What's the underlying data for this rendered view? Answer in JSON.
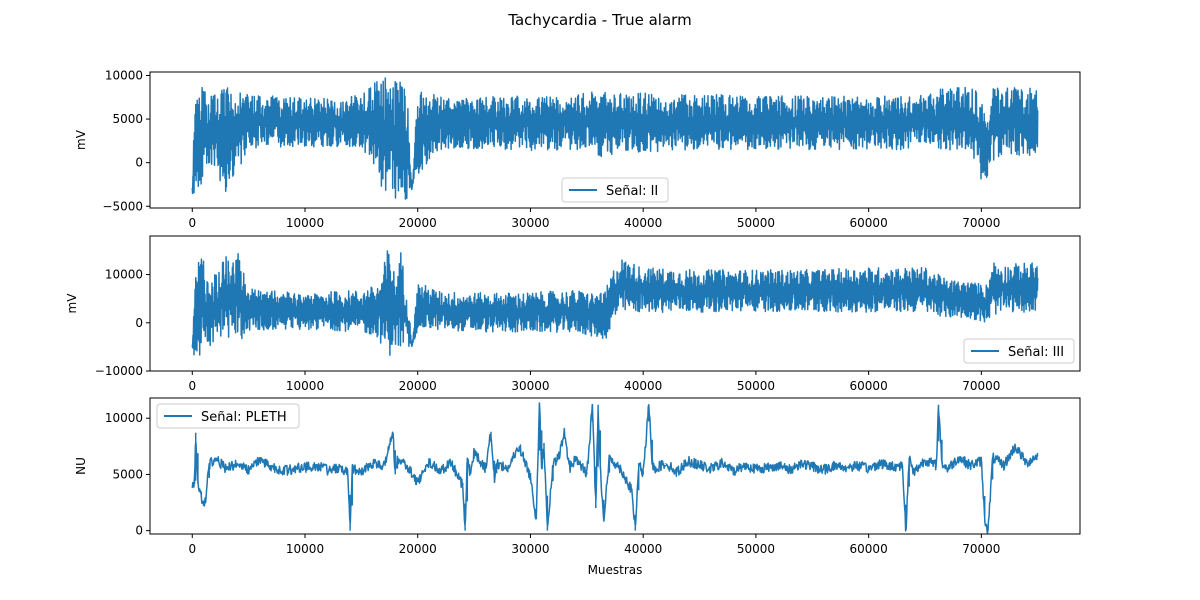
{
  "figure": {
    "title": "Tachycardia - True alarm",
    "xlabel": "Muestras"
  },
  "colors": {
    "series": "#1f77b4",
    "frame": "#000000",
    "legend_border": "#cccccc"
  },
  "chart_data": [
    {
      "type": "line",
      "ylabel": "mV",
      "legend": "Señal: II",
      "legend_loc": "lower-center",
      "xlim": [
        -3750,
        78750
      ],
      "ylim": [
        -5200,
        10400
      ],
      "xticks": [
        0,
        10000,
        20000,
        30000,
        40000,
        50000,
        60000,
        70000
      ],
      "yticks": [
        -5000,
        0,
        5000,
        10000
      ],
      "envelope": {
        "x": [
          0,
          300,
          800,
          1500,
          3000,
          5000,
          8000,
          12000,
          15000,
          16500,
          17000,
          17500,
          18000,
          18500,
          19000,
          19500,
          20000,
          22000,
          26000,
          30000,
          34000,
          36500,
          37000,
          37500,
          40000,
          45000,
          50000,
          55000,
          60000,
          65000,
          67000,
          69000,
          70000,
          70500,
          71000,
          72000,
          74000,
          75000
        ],
        "upper": [
          -2500,
          9800,
          8800,
          7500,
          8700,
          7800,
          7600,
          7500,
          7700,
          9500,
          10300,
          8500,
          9800,
          10200,
          9500,
          -2800,
          8200,
          7800,
          7600,
          7700,
          7800,
          8600,
          8800,
          7900,
          8000,
          7900,
          7600,
          7700,
          7600,
          7800,
          8800,
          8800,
          8600,
          4000,
          8800,
          8600,
          8700,
          8500
        ],
        "lower": [
          -3500,
          -4400,
          -2500,
          -200,
          -3500,
          1500,
          1800,
          1800,
          1700,
          -800,
          -4500,
          -2000,
          -4200,
          -3000,
          -4500,
          -3000,
          -1500,
          1500,
          1500,
          1400,
          1500,
          600,
          500,
          1300,
          1200,
          1400,
          1500,
          1500,
          1500,
          1500,
          1400,
          1500,
          -2000,
          -3000,
          0,
          1200,
          500,
          800
        ]
      }
    },
    {
      "type": "line",
      "ylabel": "mV",
      "legend": "Señal: III",
      "legend_loc": "lower-right",
      "xlim": [
        -3750,
        78750
      ],
      "ylim": [
        -10000,
        18000
      ],
      "xticks": [
        0,
        10000,
        20000,
        30000,
        40000,
        50000,
        60000,
        70000
      ],
      "yticks": [
        -10000,
        0,
        10000
      ],
      "envelope": {
        "x": [
          0,
          300,
          800,
          1500,
          3000,
          4000,
          5000,
          8000,
          12000,
          15000,
          16500,
          17000,
          17500,
          18000,
          18500,
          19000,
          19500,
          20000,
          22000,
          26000,
          30000,
          34000,
          36500,
          37000,
          37500,
          38000,
          40000,
          45000,
          50000,
          55000,
          60000,
          65000,
          67000,
          69000,
          70500,
          71000,
          72000,
          74000,
          75000
        ],
        "upper": [
          -4500,
          14500,
          15000,
          8000,
          14000,
          15000,
          7000,
          6500,
          6500,
          6800,
          8000,
          12000,
          17500,
          9000,
          15000,
          8000,
          -4500,
          8500,
          6500,
          6200,
          6300,
          6800,
          6000,
          9000,
          12000,
          13500,
          11500,
          11000,
          11000,
          11000,
          11500,
          11500,
          9000,
          8500,
          8000,
          13000,
          12000,
          12500,
          12500
        ],
        "lower": [
          -5000,
          -8500,
          -6500,
          -5000,
          -3500,
          -4500,
          -1500,
          -1500,
          -1500,
          -2000,
          -3000,
          -6000,
          -7000,
          -5000,
          -6000,
          -5500,
          -5000,
          -1500,
          -1500,
          -2000,
          -2000,
          -2000,
          -3500,
          -3000,
          500,
          2000,
          2200,
          2200,
          2300,
          2200,
          2200,
          2200,
          1000,
          1000,
          -300,
          1500,
          2200,
          2200,
          2500
        ]
      }
    },
    {
      "type": "line",
      "ylabel": "NU",
      "legend": "Señal: PLETH",
      "legend_loc": "upper-left",
      "xlim": [
        -3750,
        78750
      ],
      "ylim": [
        -300,
        11800
      ],
      "xticks": [
        0,
        10000,
        20000,
        30000,
        40000,
        50000,
        60000,
        70000
      ],
      "yticks": [
        0,
        5000,
        10000
      ],
      "points": {
        "x": [
          0,
          200,
          300,
          500,
          800,
          1000,
          1200,
          1500,
          2000,
          3000,
          4000,
          5000,
          6000,
          7000,
          8000,
          9000,
          10000,
          11000,
          12000,
          13000,
          13800,
          14000,
          14200,
          15000,
          16000,
          17000,
          17800,
          18000,
          18200,
          19000,
          20000,
          21000,
          22000,
          23000,
          24000,
          24200,
          24400,
          24600,
          25000,
          26000,
          26500,
          26800,
          27000,
          28000,
          29000,
          30000,
          30500,
          30800,
          31000,
          31200,
          31500,
          32000,
          32500,
          33000,
          33500,
          34000,
          35000,
          35500,
          35800,
          36000,
          36200,
          36500,
          37000,
          38000,
          39000,
          39300,
          39600,
          40000,
          40500,
          40800,
          41000,
          42000,
          43000,
          44000,
          45000,
          46000,
          47000,
          48000,
          49000,
          50000,
          51000,
          52000,
          53000,
          54000,
          55000,
          56000,
          57000,
          58000,
          59000,
          60000,
          61000,
          62000,
          63000,
          63300,
          63600,
          64000,
          65000,
          66000,
          66200,
          66500,
          67000,
          68000,
          69000,
          70000,
          70300,
          70600,
          71000,
          72000,
          73000,
          74000,
          75000
        ],
        "y": [
          3900,
          4500,
          8700,
          4200,
          3000,
          2200,
          3000,
          5800,
          6500,
          5500,
          6000,
          5400,
          6200,
          5700,
          5300,
          5500,
          5600,
          5800,
          5400,
          5600,
          5300,
          0,
          5600,
          5200,
          6000,
          5800,
          8600,
          5000,
          6300,
          5800,
          4300,
          6100,
          5400,
          6000,
          4000,
          0,
          6500,
          5000,
          7000,
          5500,
          8800,
          4500,
          6000,
          5500,
          7500,
          4800,
          1000,
          11200,
          5500,
          7800,
          0,
          5800,
          6500,
          8700,
          5500,
          6500,
          5000,
          11200,
          2000,
          11200,
          5500,
          900,
          6500,
          5500,
          3500,
          0,
          6000,
          5000,
          11200,
          6000,
          5500,
          6000,
          5200,
          6200,
          5800,
          5500,
          6000,
          5300,
          5800,
          5500,
          5600,
          5800,
          5400,
          6000,
          5700,
          5400,
          5800,
          5600,
          5800,
          5500,
          6000,
          5700,
          5800,
          0,
          6500,
          5200,
          6300,
          5800,
          11200,
          6000,
          5500,
          6500,
          5800,
          6200,
          1000,
          0,
          6500,
          5800,
          7500,
          6000,
          6700
        ]
      }
    }
  ]
}
